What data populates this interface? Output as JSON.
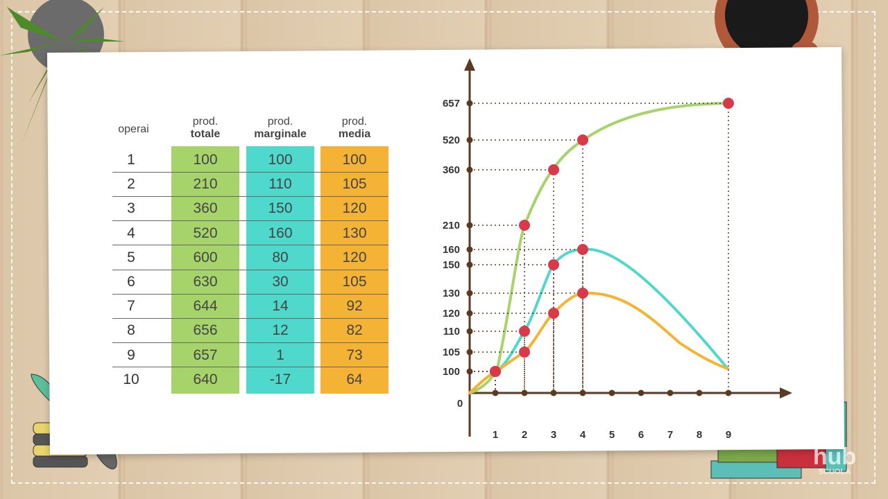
{
  "table": {
    "headers": {
      "workers": "operai",
      "total_top": "prod.",
      "total_bottom": "totale",
      "marginal_top": "prod.",
      "marginal_bottom": "marginale",
      "average_top": "prod.",
      "average_bottom": "media"
    },
    "rows": [
      {
        "n": "1",
        "total": "100",
        "marginal": "100",
        "average": "100"
      },
      {
        "n": "2",
        "total": "210",
        "marginal": "110",
        "average": "105"
      },
      {
        "n": "3",
        "total": "360",
        "marginal": "150",
        "average": "120"
      },
      {
        "n": "4",
        "total": "520",
        "marginal": "160",
        "average": "130"
      },
      {
        "n": "5",
        "total": "600",
        "marginal": "80",
        "average": "120"
      },
      {
        "n": "6",
        "total": "630",
        "marginal": "30",
        "average": "105"
      },
      {
        "n": "7",
        "total": "644",
        "marginal": "14",
        "average": "92"
      },
      {
        "n": "8",
        "total": "656",
        "marginal": "12",
        "average": "82"
      },
      {
        "n": "9",
        "total": "657",
        "marginal": "1",
        "average": "73"
      },
      {
        "n": "10",
        "total": "640",
        "marginal": "-17",
        "average": "64"
      }
    ]
  },
  "chart_data": {
    "type": "line",
    "origin_label": "0",
    "x_ticks": [
      "1",
      "2",
      "3",
      "4",
      "5",
      "6",
      "7",
      "8",
      "9"
    ],
    "y_ticks": [
      "100",
      "105",
      "110",
      "120",
      "130",
      "150",
      "160",
      "210",
      "360",
      "520",
      "657"
    ],
    "series": [
      {
        "color": "#a6d46a",
        "x": [
          1,
          2,
          3,
          4,
          9
        ],
        "y": [
          100,
          210,
          360,
          520,
          657
        ]
      },
      {
        "color": "#4fd8cc",
        "x": [
          1,
          2,
          3,
          4
        ],
        "y": [
          100,
          110,
          150,
          160
        ]
      },
      {
        "color": "#f5b335",
        "x": [
          1,
          2,
          3,
          4
        ],
        "y": [
          100,
          105,
          120,
          130
        ]
      }
    ],
    "grid": "dotted guide lines from marked points to axes"
  },
  "colors": {
    "total": "#a6d46a",
    "marginal": "#4fd8cc",
    "average": "#f5b335",
    "point": "#d93a4a",
    "axis": "#5a3a22"
  },
  "watermark": {
    "line1": "hub",
    "line2": "SCUOLA"
  }
}
